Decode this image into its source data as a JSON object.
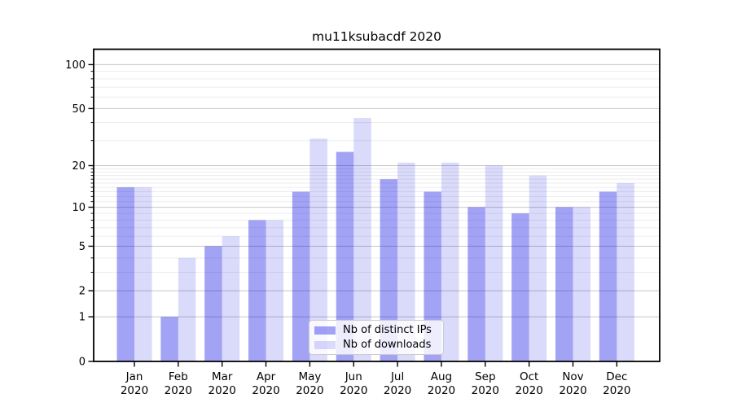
{
  "chart_data": {
    "type": "bar",
    "title": "mu11ksubacdf 2020",
    "categories": [
      "Jan",
      "Feb",
      "Mar",
      "Apr",
      "May",
      "Jun",
      "Jul",
      "Aug",
      "Sep",
      "Oct",
      "Nov",
      "Dec"
    ],
    "year_label": "2020",
    "series": [
      {
        "name": "Nb of distinct IPs",
        "slug": "distinct-ips",
        "color": "rgba(0,0,230,0.36)",
        "values": [
          14,
          1,
          5,
          8,
          13,
          25,
          16,
          13,
          10,
          9,
          10,
          13
        ]
      },
      {
        "name": "Nb of downloads",
        "slug": "downloads",
        "color": "rgba(0,0,230,0.145)",
        "values": [
          14,
          4,
          6,
          8,
          31,
          43,
          21,
          21,
          20,
          17,
          10,
          15
        ]
      }
    ],
    "xlabel": "",
    "ylabel": "",
    "y_scale": "log1p",
    "ylim": [
      0,
      127
    ],
    "y_major_ticks": [
      0,
      1,
      2,
      5,
      10,
      20,
      50,
      100
    ],
    "y_minor_ticks": [
      3,
      4,
      6,
      7,
      8,
      9,
      11,
      12,
      13,
      14,
      15,
      16,
      17,
      18,
      19,
      30,
      40,
      60,
      70,
      80,
      90
    ],
    "grid": "both",
    "legend_position": "lower-center",
    "colors": {
      "major_grid": "#c6c6c6",
      "minor_grid": "#ededed",
      "axis": "#000000"
    }
  }
}
